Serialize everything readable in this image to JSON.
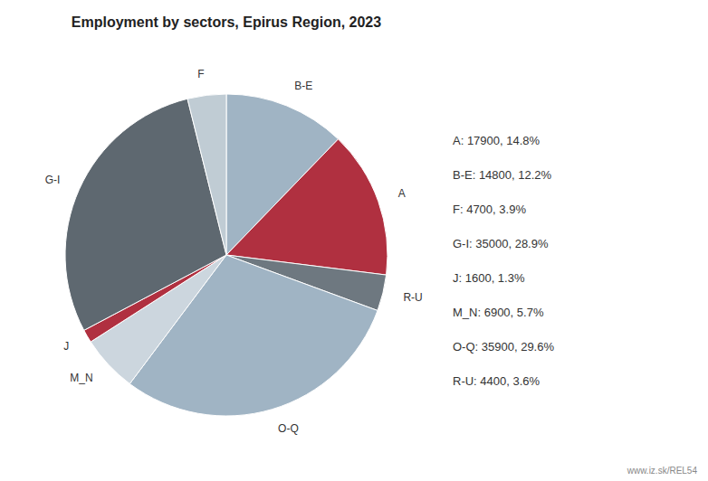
{
  "chart_data": {
    "type": "pie",
    "title": "Employment by sectors, Epirus Region, 2023",
    "categories": [
      "B-E",
      "A",
      "R-U",
      "O-Q",
      "M_N",
      "J",
      "G-I",
      "F"
    ],
    "values": [
      14800,
      17900,
      4400,
      35900,
      6900,
      1600,
      35000,
      4700
    ],
    "colors": [
      "#a0b4c4",
      "#b03040",
      "#6e7880",
      "#a0b4c4",
      "#ccd6de",
      "#b03040",
      "#5e6870",
      "#c0ccd4"
    ],
    "annotations": [
      "A: 17900, 14.8%",
      "B-E: 14800, 12.2%",
      "F: 4700, 3.9%",
      "G-I: 35000, 28.9%",
      "J: 1600, 1.3%",
      "M_N: 6900, 5.7%",
      "O-Q: 35900, 29.6%",
      "R-U: 4400, 3.6%"
    ],
    "source": "www.iz.sk/REL54"
  }
}
